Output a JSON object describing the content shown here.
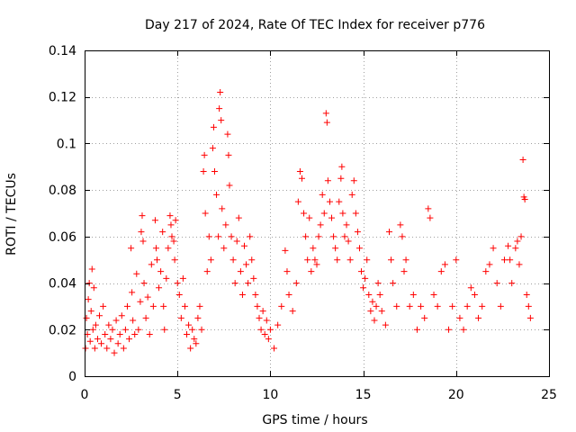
{
  "chart_data": {
    "type": "scatter",
    "title": "Day 217 of 2024, Rate Of TEC Index for receiver p776",
    "xlabel": "GPS time / hours",
    "ylabel": "ROTI / TECUs",
    "xlim": [
      0,
      25
    ],
    "ylim": [
      0,
      0.14
    ],
    "x_ticks": [
      0,
      5,
      10,
      15,
      20,
      25
    ],
    "y_ticks": [
      0,
      0.02,
      0.04,
      0.06,
      0.08,
      0.1,
      0.12,
      0.14
    ],
    "x_tick_labels": [
      "0",
      "5",
      "10",
      "15",
      "20",
      "25"
    ],
    "y_tick_labels": [
      "0",
      "0.02",
      "0.04",
      "0.06",
      "0.08",
      "0.1",
      "0.12",
      "0.14"
    ],
    "grid": true,
    "marker": "+",
    "color": "#ff0000",
    "series": [
      {
        "name": "ROTI",
        "points": [
          [
            0.05,
            0.012
          ],
          [
            0.1,
            0.025
          ],
          [
            0.15,
            0.018
          ],
          [
            0.2,
            0.033
          ],
          [
            0.25,
            0.04
          ],
          [
            0.3,
            0.015
          ],
          [
            0.35,
            0.028
          ],
          [
            0.4,
            0.046
          ],
          [
            0.45,
            0.02
          ],
          [
            0.5,
            0.038
          ],
          [
            0.55,
            0.012
          ],
          [
            0.6,
            0.022
          ],
          [
            0.7,
            0.016
          ],
          [
            0.8,
            0.026
          ],
          [
            0.9,
            0.014
          ],
          [
            1.0,
            0.03
          ],
          [
            1.1,
            0.018
          ],
          [
            1.2,
            0.012
          ],
          [
            1.3,
            0.022
          ],
          [
            1.4,
            0.016
          ],
          [
            1.5,
            0.02
          ],
          [
            1.6,
            0.01
          ],
          [
            1.7,
            0.024
          ],
          [
            1.8,
            0.014
          ],
          [
            1.9,
            0.018
          ],
          [
            2.0,
            0.026
          ],
          [
            2.1,
            0.012
          ],
          [
            2.2,
            0.02
          ],
          [
            2.3,
            0.03
          ],
          [
            2.4,
            0.016
          ],
          [
            2.5,
            0.055
          ],
          [
            2.55,
            0.036
          ],
          [
            2.6,
            0.024
          ],
          [
            2.7,
            0.018
          ],
          [
            2.8,
            0.044
          ],
          [
            2.9,
            0.02
          ],
          [
            3.0,
            0.032
          ],
          [
            3.05,
            0.062
          ],
          [
            3.1,
            0.069
          ],
          [
            3.15,
            0.058
          ],
          [
            3.2,
            0.04
          ],
          [
            3.3,
            0.025
          ],
          [
            3.4,
            0.034
          ],
          [
            3.5,
            0.018
          ],
          [
            3.6,
            0.048
          ],
          [
            3.7,
            0.03
          ],
          [
            3.8,
            0.067
          ],
          [
            3.85,
            0.055
          ],
          [
            3.9,
            0.05
          ],
          [
            4.0,
            0.038
          ],
          [
            4.1,
            0.045
          ],
          [
            4.2,
            0.062
          ],
          [
            4.25,
            0.03
          ],
          [
            4.3,
            0.02
          ],
          [
            4.4,
            0.042
          ],
          [
            4.5,
            0.055
          ],
          [
            4.6,
            0.069
          ],
          [
            4.65,
            0.065
          ],
          [
            4.7,
            0.06
          ],
          [
            4.8,
            0.058
          ],
          [
            4.85,
            0.05
          ],
          [
            4.9,
            0.067
          ],
          [
            5.0,
            0.04
          ],
          [
            5.1,
            0.035
          ],
          [
            5.2,
            0.025
          ],
          [
            5.3,
            0.042
          ],
          [
            5.4,
            0.03
          ],
          [
            5.5,
            0.018
          ],
          [
            5.6,
            0.022
          ],
          [
            5.7,
            0.012
          ],
          [
            5.8,
            0.02
          ],
          [
            5.9,
            0.016
          ],
          [
            6.0,
            0.014
          ],
          [
            6.1,
            0.025
          ],
          [
            6.2,
            0.03
          ],
          [
            6.3,
            0.02
          ],
          [
            6.4,
            0.088
          ],
          [
            6.45,
            0.095
          ],
          [
            6.5,
            0.07
          ],
          [
            6.6,
            0.045
          ],
          [
            6.7,
            0.06
          ],
          [
            6.8,
            0.05
          ],
          [
            6.9,
            0.098
          ],
          [
            6.95,
            0.107
          ],
          [
            7.0,
            0.088
          ],
          [
            7.1,
            0.078
          ],
          [
            7.2,
            0.06
          ],
          [
            7.25,
            0.115
          ],
          [
            7.3,
            0.122
          ],
          [
            7.35,
            0.11
          ],
          [
            7.4,
            0.072
          ],
          [
            7.5,
            0.055
          ],
          [
            7.6,
            0.065
          ],
          [
            7.7,
            0.104
          ],
          [
            7.75,
            0.095
          ],
          [
            7.8,
            0.082
          ],
          [
            7.9,
            0.06
          ],
          [
            8.0,
            0.05
          ],
          [
            8.1,
            0.04
          ],
          [
            8.2,
            0.058
          ],
          [
            8.3,
            0.068
          ],
          [
            8.4,
            0.045
          ],
          [
            8.5,
            0.035
          ],
          [
            8.6,
            0.056
          ],
          [
            8.7,
            0.048
          ],
          [
            8.8,
            0.04
          ],
          [
            8.9,
            0.06
          ],
          [
            9.0,
            0.05
          ],
          [
            9.1,
            0.042
          ],
          [
            9.2,
            0.035
          ],
          [
            9.3,
            0.03
          ],
          [
            9.4,
            0.025
          ],
          [
            9.5,
            0.02
          ],
          [
            9.6,
            0.028
          ],
          [
            9.7,
            0.018
          ],
          [
            9.8,
            0.024
          ],
          [
            9.9,
            0.016
          ],
          [
            10.0,
            0.02
          ],
          [
            10.2,
            0.012
          ],
          [
            10.4,
            0.022
          ],
          [
            10.6,
            0.03
          ],
          [
            10.8,
            0.054
          ],
          [
            10.9,
            0.045
          ],
          [
            11.0,
            0.035
          ],
          [
            11.2,
            0.028
          ],
          [
            11.4,
            0.04
          ],
          [
            11.5,
            0.075
          ],
          [
            11.6,
            0.088
          ],
          [
            11.7,
            0.085
          ],
          [
            11.8,
            0.07
          ],
          [
            11.9,
            0.06
          ],
          [
            12.0,
            0.05
          ],
          [
            12.1,
            0.068
          ],
          [
            12.2,
            0.045
          ],
          [
            12.3,
            0.055
          ],
          [
            12.4,
            0.05
          ],
          [
            12.5,
            0.048
          ],
          [
            12.6,
            0.06
          ],
          [
            12.7,
            0.065
          ],
          [
            12.8,
            0.078
          ],
          [
            12.9,
            0.07
          ],
          [
            13.0,
            0.113
          ],
          [
            13.05,
            0.109
          ],
          [
            13.1,
            0.084
          ],
          [
            13.2,
            0.075
          ],
          [
            13.3,
            0.068
          ],
          [
            13.4,
            0.06
          ],
          [
            13.5,
            0.055
          ],
          [
            13.6,
            0.05
          ],
          [
            13.7,
            0.075
          ],
          [
            13.8,
            0.085
          ],
          [
            13.85,
            0.09
          ],
          [
            13.9,
            0.07
          ],
          [
            14.0,
            0.06
          ],
          [
            14.1,
            0.065
          ],
          [
            14.2,
            0.058
          ],
          [
            14.3,
            0.05
          ],
          [
            14.4,
            0.078
          ],
          [
            14.5,
            0.084
          ],
          [
            14.6,
            0.07
          ],
          [
            14.7,
            0.062
          ],
          [
            14.8,
            0.055
          ],
          [
            14.9,
            0.045
          ],
          [
            15.0,
            0.038
          ],
          [
            15.1,
            0.042
          ],
          [
            15.2,
            0.05
          ],
          [
            15.3,
            0.035
          ],
          [
            15.4,
            0.028
          ],
          [
            15.5,
            0.032
          ],
          [
            15.6,
            0.024
          ],
          [
            15.7,
            0.03
          ],
          [
            15.8,
            0.04
          ],
          [
            15.9,
            0.035
          ],
          [
            16.0,
            0.028
          ],
          [
            16.2,
            0.022
          ],
          [
            16.4,
            0.062
          ],
          [
            16.5,
            0.05
          ],
          [
            16.6,
            0.04
          ],
          [
            16.8,
            0.03
          ],
          [
            17.0,
            0.065
          ],
          [
            17.1,
            0.06
          ],
          [
            17.2,
            0.045
          ],
          [
            17.3,
            0.05
          ],
          [
            17.5,
            0.03
          ],
          [
            17.7,
            0.035
          ],
          [
            17.9,
            0.02
          ],
          [
            18.1,
            0.03
          ],
          [
            18.3,
            0.025
          ],
          [
            18.5,
            0.072
          ],
          [
            18.6,
            0.068
          ],
          [
            18.8,
            0.035
          ],
          [
            19.0,
            0.03
          ],
          [
            19.2,
            0.045
          ],
          [
            19.4,
            0.048
          ],
          [
            19.6,
            0.02
          ],
          [
            19.8,
            0.03
          ],
          [
            20.0,
            0.05
          ],
          [
            20.2,
            0.025
          ],
          [
            20.4,
            0.02
          ],
          [
            20.6,
            0.03
          ],
          [
            20.8,
            0.038
          ],
          [
            21.0,
            0.035
          ],
          [
            21.2,
            0.025
          ],
          [
            21.4,
            0.03
          ],
          [
            21.6,
            0.045
          ],
          [
            21.8,
            0.048
          ],
          [
            22.0,
            0.055
          ],
          [
            22.2,
            0.04
          ],
          [
            22.4,
            0.03
          ],
          [
            22.6,
            0.05
          ],
          [
            22.8,
            0.056
          ],
          [
            22.9,
            0.05
          ],
          [
            23.0,
            0.04
          ],
          [
            23.2,
            0.055
          ],
          [
            23.3,
            0.058
          ],
          [
            23.4,
            0.048
          ],
          [
            23.5,
            0.06
          ],
          [
            23.6,
            0.093
          ],
          [
            23.65,
            0.077
          ],
          [
            23.7,
            0.076
          ],
          [
            23.8,
            0.035
          ],
          [
            23.9,
            0.03
          ],
          [
            24.0,
            0.025
          ]
        ]
      }
    ]
  }
}
